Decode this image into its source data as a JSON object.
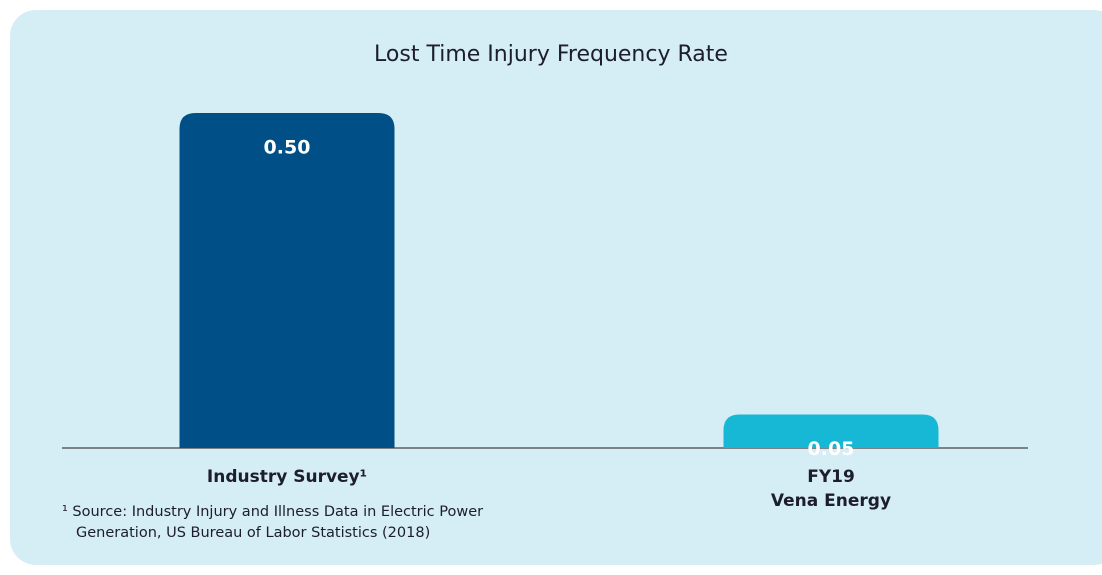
{
  "chart_data": {
    "type": "bar",
    "title": "Lost Time Injury Frequency Rate",
    "categories": [
      "Industry Survey¹",
      "FY19\nVena Energy"
    ],
    "values": [
      0.5,
      0.05
    ],
    "value_labels": [
      "0.50",
      "0.05"
    ],
    "colors": [
      "#004f86",
      "#16b8d6"
    ],
    "ylim": [
      0,
      0.5
    ],
    "footnote": [
      "¹ Source: Industry Injury and Illness Data in Electric Power",
      "Generation, US Bureau of Labor Statistics (2018)"
    ]
  }
}
